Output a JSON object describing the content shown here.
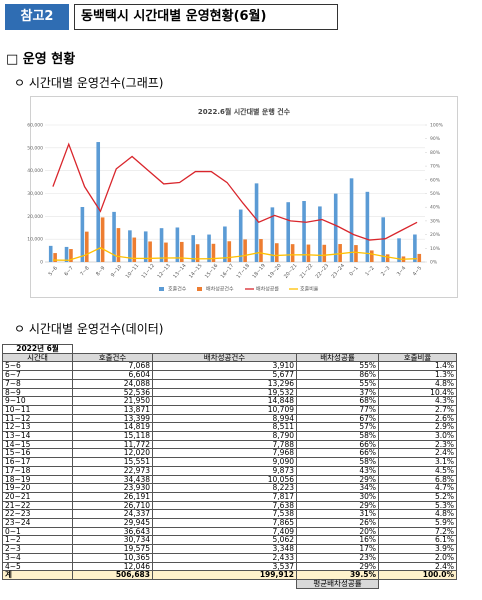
{
  "header": {
    "tag": "참고2",
    "title": "동백택시 시간대별 운영현황(6월)"
  },
  "section": "□ 운영 현황",
  "subsections": [
    "ㅇ 시간대별 운영건수(그래프)",
    "ㅇ 시간대별 운영건수(데이터)"
  ],
  "chart_data": {
    "type": "bar-line",
    "title": "2022.6월 시간대별 운행 건수",
    "categories": [
      "5~6",
      "6~7",
      "7~8",
      "8~9",
      "9~10",
      "10~11",
      "11~12",
      "12~13",
      "13~14",
      "14~15",
      "15~16",
      "16~17",
      "17~18",
      "18~19",
      "19~20",
      "20~21",
      "21~22",
      "22~23",
      "23~24",
      "0~1",
      "1~2",
      "2~3",
      "3~4",
      "4~5"
    ],
    "series": [
      {
        "name": "호출건수",
        "kind": "bar",
        "color": "#5b9bd5",
        "values": [
          7068,
          6604,
          24088,
          52536,
          21950,
          13871,
          13399,
          14819,
          15118,
          11772,
          12020,
          15551,
          22973,
          34438,
          23930,
          26191,
          26710,
          24337,
          29945,
          36643,
          30734,
          19575,
          10365,
          12046
        ]
      },
      {
        "name": "배차성공건수",
        "kind": "bar",
        "color": "#ed7d31",
        "values": [
          3910,
          5677,
          13296,
          19532,
          14848,
          10709,
          8994,
          8511,
          8790,
          7788,
          7968,
          9090,
          9873,
          10056,
          8223,
          7817,
          7638,
          7538,
          7865,
          7409,
          5062,
          3348,
          2433,
          3537
        ]
      },
      {
        "name": "배차성공률",
        "kind": "line",
        "axis": "y2",
        "color": "#d9262c",
        "values": [
          55,
          86,
          55,
          37,
          68,
          77,
          67,
          57,
          58,
          66,
          66,
          58,
          43,
          29,
          34,
          30,
          29,
          31,
          26,
          20,
          16,
          17,
          23,
          29
        ]
      },
      {
        "name": "호출비율",
        "kind": "line",
        "axis": "y2",
        "color": "#ffc000",
        "values": [
          1.4,
          1.3,
          4.8,
          10.4,
          4.3,
          2.7,
          2.6,
          2.9,
          3.0,
          2.3,
          2.4,
          3.1,
          4.5,
          6.8,
          4.7,
          5.2,
          5.3,
          4.8,
          5.9,
          7.2,
          6.1,
          3.9,
          2.0,
          2.4
        ]
      }
    ],
    "ylim": [
      0,
      60000
    ],
    "yticks": [
      0,
      {
        "value": 10000,
        "label": "10,000"
      },
      {
        "value": 20000,
        "label": "20,000"
      },
      {
        "value": 30000,
        "label": "30,000"
      },
      {
        "value": 40000,
        "label": "40,000"
      },
      {
        "value": 50000,
        "label": "50,000"
      },
      {
        "value": 60000,
        "label": "60,000"
      }
    ],
    "y2lim": [
      0,
      100
    ],
    "y2ticks": [
      {
        "value": 0,
        "label": "0%"
      },
      {
        "value": 10,
        "label": "10%"
      },
      {
        "value": 20,
        "label": "20%"
      },
      {
        "value": 30,
        "label": "30%"
      },
      {
        "value": 40,
        "label": "40%"
      },
      {
        "value": 50,
        "label": "50%"
      },
      {
        "value": 60,
        "label": "60%"
      },
      {
        "value": 70,
        "label": "70%"
      },
      {
        "value": 80,
        "label": "80%"
      },
      {
        "value": 90,
        "label": "90%"
      },
      {
        "value": 100,
        "label": "100%"
      }
    ],
    "grid": true,
    "legend": "bottom"
  },
  "table": {
    "caption": "2022년 6월",
    "header": [
      "시간대",
      "호출건수",
      "배차성공건수",
      "배차성공률",
      "호출비율"
    ],
    "rows": [
      [
        "5~6",
        "7,068",
        "3,910",
        "55%",
        "1.4%"
      ],
      [
        "6~7",
        "6,604",
        "5,677",
        "86%",
        "1.3%"
      ],
      [
        "7~8",
        "24,088",
        "13,296",
        "55%",
        "4.8%"
      ],
      [
        "8~9",
        "52,536",
        "19,532",
        "37%",
        "10.4%"
      ],
      [
        "9~10",
        "21,950",
        "14,848",
        "68%",
        "4.3%"
      ],
      [
        "10~11",
        "13,871",
        "10,709",
        "77%",
        "2.7%"
      ],
      [
        "11~12",
        "13,399",
        "8,994",
        "67%",
        "2.6%"
      ],
      [
        "12~13",
        "14,819",
        "8,511",
        "57%",
        "2.9%"
      ],
      [
        "13~14",
        "15,118",
        "8,790",
        "58%",
        "3.0%"
      ],
      [
        "14~15",
        "11,772",
        "7,788",
        "66%",
        "2.3%"
      ],
      [
        "15~16",
        "12,020",
        "7,968",
        "66%",
        "2.4%"
      ],
      [
        "16~17",
        "15,551",
        "9,090",
        "58%",
        "3.1%"
      ],
      [
        "17~18",
        "22,973",
        "9,873",
        "43%",
        "4.5%"
      ],
      [
        "18~19",
        "34,438",
        "10,056",
        "29%",
        "6.8%"
      ],
      [
        "19~20",
        "23,930",
        "8,223",
        "34%",
        "4.7%"
      ],
      [
        "20~21",
        "26,191",
        "7,817",
        "30%",
        "5.2%"
      ],
      [
        "21~22",
        "26,710",
        "7,638",
        "29%",
        "5.3%"
      ],
      [
        "22~23",
        "24,337",
        "7,538",
        "31%",
        "4.8%"
      ],
      [
        "23~24",
        "29,945",
        "7,865",
        "26%",
        "5.9%"
      ],
      [
        "0~1",
        "36,643",
        "7,409",
        "20%",
        "7.2%"
      ],
      [
        "1~2",
        "30,734",
        "5,062",
        "16%",
        "6.1%"
      ],
      [
        "2~3",
        "19,575",
        "3,348",
        "17%",
        "3.9%"
      ],
      [
        "3~4",
        "10,365",
        "2,433",
        "23%",
        "2.0%"
      ],
      [
        "4~5",
        "12,046",
        "3,537",
        "29%",
        "2.4%"
      ]
    ],
    "total": [
      "계",
      "506,683",
      "199,912",
      "39.5%",
      "100.0%"
    ],
    "note": "평균배차성공률"
  }
}
